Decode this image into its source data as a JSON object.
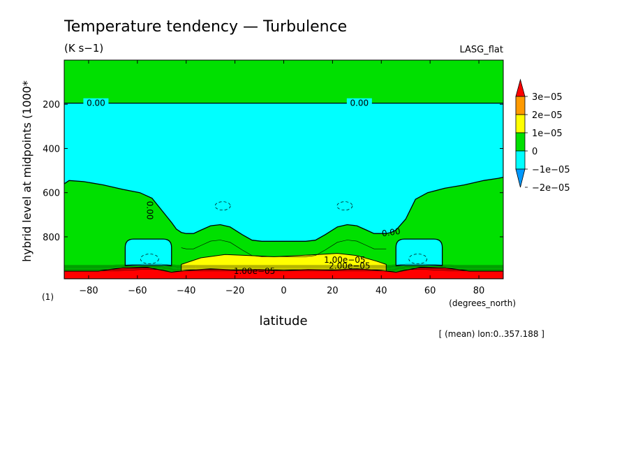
{
  "chart_data": {
    "type": "heatmap",
    "title": "Temperature tendency — Turbulence",
    "units": "(K s−1)",
    "dataset_label": "LASG_flat",
    "xlabel": "latitude",
    "x_units": "(degrees_north)",
    "ylabel": "hybrid level at midpoints (1000*",
    "y_units": "(1)",
    "footnote": "[ (mean) lon:0..357.188 ]",
    "xlim": [
      -90,
      90
    ],
    "ylim": [
      0,
      990
    ],
    "y_inverted": true,
    "x_ticks": [
      -80,
      -60,
      -40,
      -20,
      0,
      20,
      40,
      60,
      80
    ],
    "x_tick_labels": [
      "−80",
      "−60",
      "−40",
      "−20",
      "0",
      "20",
      "40",
      "60",
      "80"
    ],
    "y_ticks": [
      200,
      400,
      600,
      800
    ],
    "y_tick_labels": [
      "200",
      "400",
      "600",
      "800"
    ],
    "colorbar": {
      "labels": [
        "3e−05",
        "2e−05",
        "1e−05",
        "0",
        "−1e−05",
        "−2e−05"
      ],
      "colors": [
        "#ff0000",
        "#ff9a00",
        "#ffff00",
        "#00e000",
        "#00ffff",
        "#0099ff"
      ]
    },
    "regions": [
      {
        "level": "0 to 1e-05",
        "color": "#00e000",
        "note": "background and lower flanks"
      },
      {
        "level": "-1e-05 to 0",
        "color": "#00ffff",
        "note": "upper/middle troposphere",
        "upper_x": [
          -90,
          90
        ],
        "upper_y": [
          195,
          195
        ],
        "lower_x": [
          -90,
          -88,
          -82,
          -74,
          -66,
          -59,
          -54,
          -50,
          -46,
          -44,
          -42,
          -40,
          -37,
          -34,
          -30,
          -26,
          -22,
          -17,
          -13,
          -9,
          -5,
          0,
          5,
          9,
          13,
          17,
          22,
          26,
          30,
          34,
          37,
          40,
          42,
          44,
          46,
          50,
          54,
          59,
          66,
          74,
          82,
          88,
          90
        ],
        "lower_y": [
          560,
          545,
          550,
          565,
          585,
          600,
          625,
          680,
          735,
          765,
          780,
          785,
          785,
          770,
          750,
          745,
          755,
          790,
          815,
          820,
          820,
          820,
          820,
          820,
          815,
          790,
          755,
          745,
          750,
          770,
          785,
          785,
          785,
          780,
          770,
          720,
          630,
          600,
          580,
          565,
          545,
          535,
          530
        ]
      },
      {
        "level": "-1e-05 to 0",
        "color": "#00ffff",
        "note": "southern polar cell",
        "x": [
          -65,
          -46
        ],
        "y": [
          810,
          930
        ]
      },
      {
        "level": "-1e-05 to 0",
        "color": "#00ffff",
        "note": "northern polar cell",
        "x": [
          46,
          65
        ],
        "y": [
          810,
          930
        ]
      },
      {
        "level": "1e-05 to 2e-05",
        "color": "#ffff00",
        "note": "near-surface band",
        "x": [
          -42,
          -34,
          -24,
          -14,
          -4,
          6,
          14,
          22,
          30,
          38,
          42
        ],
        "top_y": [
          925,
          895,
          880,
          885,
          890,
          885,
          880,
          875,
          885,
          910,
          925
        ]
      },
      {
        "level": "> 3e-05",
        "color": "#ff0000",
        "note": "surface layer",
        "x": [
          -90,
          -76,
          -66,
          -56,
          -46,
          -40,
          -30,
          -20,
          -10,
          0,
          10,
          20,
          30,
          40,
          46,
          56,
          66,
          76,
          90
        ],
        "top_y": [
          955,
          955,
          940,
          938,
          960,
          952,
          945,
          950,
          948,
          952,
          948,
          950,
          945,
          952,
          960,
          938,
          940,
          955,
          955
        ]
      }
    ],
    "contour_labels": [
      {
        "text": "0.00",
        "x": -77,
        "y": 195
      },
      {
        "text": "0.00",
        "x": 31,
        "y": 195
      },
      {
        "text": "0.00",
        "x": -55,
        "y": 680
      },
      {
        "text": "0.00",
        "x": 44,
        "y": 780
      },
      {
        "text": "1.00e−05",
        "x": 25,
        "y": 905
      },
      {
        "text": "2.00e−05",
        "x": 27,
        "y": 932
      },
      {
        "text": "1.00e−05",
        "x": -12,
        "y": 955
      }
    ],
    "dashed_cells": [
      {
        "x": -25,
        "y": 660
      },
      {
        "x": 25,
        "y": 660
      },
      {
        "x": -55,
        "y": 900
      },
      {
        "x": 55,
        "y": 900
      }
    ]
  }
}
